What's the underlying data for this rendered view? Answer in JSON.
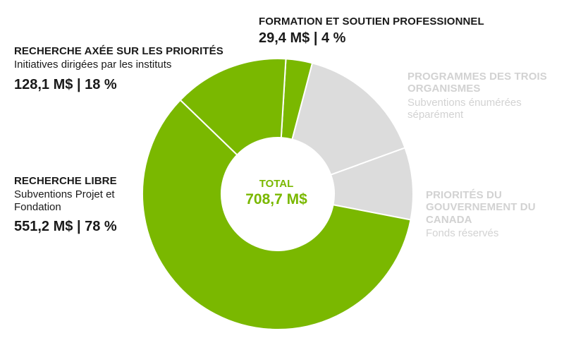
{
  "chart_data": {
    "type": "pie",
    "donut": true,
    "total_label": "TOTAL",
    "total_value": "708,7 M$",
    "slices": [
      {
        "id": "formation",
        "title": "FORMATION ET SOUTIEN PROFESSIONNEL",
        "amount_text": "29,4 M$ | 4 %",
        "value": 29.4,
        "color": "#7ab800"
      },
      {
        "id": "trois",
        "title": "PROGRAMMES DES TROIS ORGANISMES",
        "subtitle": "Subventions énumérées séparément",
        "value": 143.0,
        "color": "#dcdcdc"
      },
      {
        "id": "gouvernement",
        "title": "PRIORITÉS DU GOUVERNEMENT DU CANADA",
        "subtitle": "Fonds réservés",
        "value": 80.0,
        "color": "#dcdcdc"
      },
      {
        "id": "libre",
        "title": "RECHERCHE LIBRE",
        "subtitle": "Subventions Projet et Fondation",
        "amount_text": "551,2 M$ | 78 %",
        "value": 551.2,
        "color": "#7ab800"
      },
      {
        "id": "priorites",
        "title": "RECHERCHE AXÉE SUR LES PRIORITÉS",
        "subtitle": "Initiatives dirigées par les instituts",
        "amount_text": "128,1 M$ | 18 %",
        "value": 128.1,
        "color": "#7ab800"
      }
    ]
  }
}
